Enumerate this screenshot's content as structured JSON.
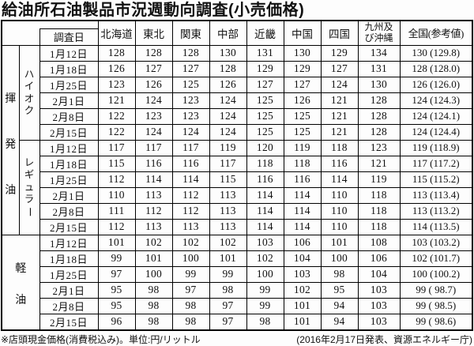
{
  "title": "給油所石油製品市況週動向調査(小売価格)",
  "table": {
    "survey_date_label": "調査日",
    "region_headers": [
      "北海道",
      "東北",
      "関東",
      "中部",
      "近畿",
      "中国",
      "四国",
      "九州及び沖縄",
      "全国(参考値)"
    ],
    "fuel_groups": [
      {
        "fuel": "揮発油",
        "grades": [
          {
            "grade": "ハイオク",
            "rows": [
              {
                "date": "1月12日",
                "values": [
                  "128",
                  "128",
                  "128",
                  "130",
                  "131",
                  "130",
                  "129",
                  "134"
                ],
                "national": "130 (129.8)"
              },
              {
                "date": "1月18日",
                "values": [
                  "126",
                  "127",
                  "127",
                  "128",
                  "129",
                  "129",
                  "127",
                  "131"
                ],
                "national": "128 (128.0)"
              },
              {
                "date": "1月25日",
                "values": [
                  "123",
                  "126",
                  "125",
                  "126",
                  "127",
                  "127",
                  "124",
                  "130"
                ],
                "national": "126 (126.0)"
              },
              {
                "date": "2月1日",
                "values": [
                  "121",
                  "124",
                  "123",
                  "124",
                  "125",
                  "126",
                  "121",
                  "128"
                ],
                "national": "124 (124.3)"
              },
              {
                "date": "2月8日",
                "values": [
                  "122",
                  "123",
                  "123",
                  "124",
                  "125",
                  "125",
                  "121",
                  "128"
                ],
                "national": "124 (124.1)"
              },
              {
                "date": "2月15日",
                "values": [
                  "122",
                  "124",
                  "124",
                  "124",
                  "125",
                  "125",
                  "121",
                  "128"
                ],
                "national": "124 (124.4)"
              }
            ]
          },
          {
            "grade": "レギュラー",
            "rows": [
              {
                "date": "1月12日",
                "values": [
                  "117",
                  "117",
                  "117",
                  "119",
                  "120",
                  "119",
                  "118",
                  "123"
                ],
                "national": "119 (118.9)"
              },
              {
                "date": "1月18日",
                "values": [
                  "115",
                  "116",
                  "116",
                  "117",
                  "118",
                  "118",
                  "116",
                  "121"
                ],
                "national": "117 (117.2)"
              },
              {
                "date": "1月25日",
                "values": [
                  "112",
                  "114",
                  "114",
                  "115",
                  "116",
                  "116",
                  "114",
                  "119"
                ],
                "national": "115 (115.2)"
              },
              {
                "date": "2月1日",
                "values": [
                  "110",
                  "113",
                  "112",
                  "113",
                  "114",
                  "114",
                  "110",
                  "118"
                ],
                "national": "113 (113.4)"
              },
              {
                "date": "2月8日",
                "values": [
                  "111",
                  "112",
                  "112",
                  "113",
                  "114",
                  "114",
                  "110",
                  "118"
                ],
                "national": "113 (113.2)"
              },
              {
                "date": "2月15日",
                "values": [
                  "112",
                  "113",
                  "113",
                  "113",
                  "114",
                  "114",
                  "110",
                  "118"
                ],
                "national": "114 (113.5)"
              }
            ]
          }
        ]
      },
      {
        "fuel": "軽油",
        "grades": [
          {
            "grade": null,
            "rows": [
              {
                "date": "1月12日",
                "values": [
                  "101",
                  "102",
                  "102",
                  "102",
                  "103",
                  "106",
                  "101",
                  "108"
                ],
                "national": "103 (103.2)"
              },
              {
                "date": "1月18日",
                "values": [
                  "99",
                  "101",
                  "100",
                  "101",
                  "102",
                  "104",
                  "100",
                  "106"
                ],
                "national": "102 (101.7)"
              },
              {
                "date": "1月25日",
                "values": [
                  "97",
                  "100",
                  "99",
                  "99",
                  "100",
                  "103",
                  "98",
                  "104"
                ],
                "national": "100 (100.2)"
              },
              {
                "date": "2月1日",
                "values": [
                  "95",
                  "98",
                  "97",
                  "98",
                  "99",
                  "102",
                  "95",
                  "103"
                ],
                "national": "99 ( 98.7)"
              },
              {
                "date": "2月8日",
                "values": [
                  "95",
                  "98",
                  "98",
                  "97",
                  "99",
                  "101",
                  "94",
                  "103"
                ],
                "national": "99 ( 98.5)"
              },
              {
                "date": "2月15日",
                "values": [
                  "96",
                  "98",
                  "98",
                  "97",
                  "98",
                  "101",
                  "94",
                  "103"
                ],
                "national": "99 ( 98.6)"
              }
            ]
          }
        ]
      }
    ]
  },
  "footer": {
    "note": "※店頭現金価格(消費税込み)。単位:円/リットル",
    "source": "(2016年2月17日発表、資源エネルギー庁)"
  }
}
